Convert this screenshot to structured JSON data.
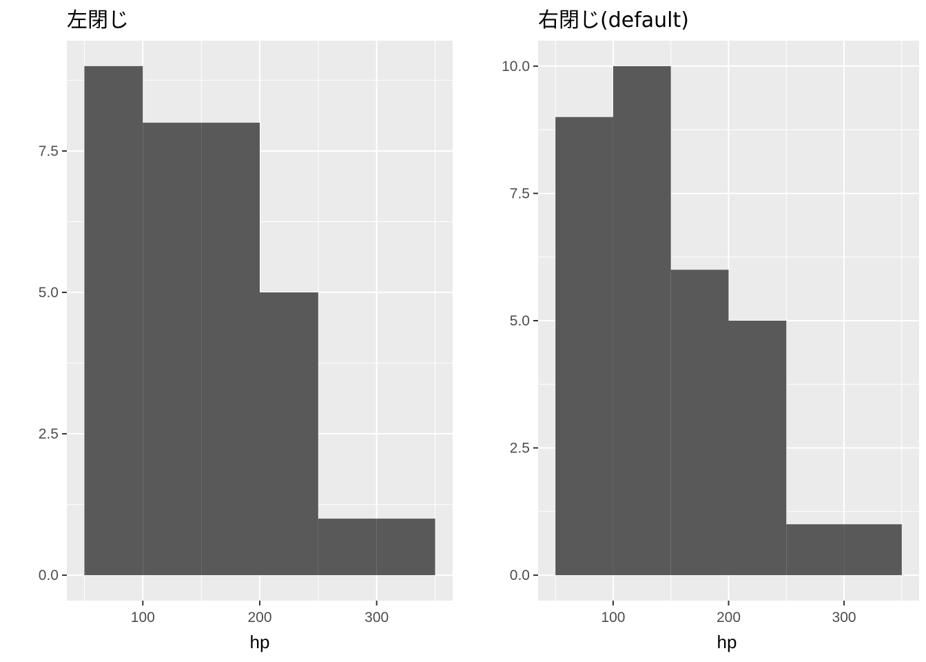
{
  "chart_data": [
    {
      "type": "bar",
      "subtype": "histogram",
      "title": "左閉じ",
      "xlabel": "hp",
      "ylabel": "",
      "bins": [
        {
          "x0": 50,
          "x1": 100,
          "count": 9
        },
        {
          "x0": 100,
          "x1": 150,
          "count": 8
        },
        {
          "x0": 150,
          "x1": 200,
          "count": 8
        },
        {
          "x0": 200,
          "x1": 250,
          "count": 5
        },
        {
          "x0": 250,
          "x1": 300,
          "count": 1
        },
        {
          "x0": 300,
          "x1": 350,
          "count": 1
        }
      ],
      "xlim": [
        35,
        365
      ],
      "ylim": [
        -0.45,
        9.45
      ],
      "x_ticks": [
        100,
        200,
        300
      ],
      "x_tick_labels": [
        "100",
        "200",
        "300"
      ],
      "y_ticks": [
        0,
        2.5,
        5,
        7.5
      ],
      "y_tick_labels": [
        "0.0",
        "2.5",
        "5.0",
        "7.5"
      ],
      "grid": true,
      "bar_color": "#595959",
      "panel_color": "#ebebeb"
    },
    {
      "type": "bar",
      "subtype": "histogram",
      "title": "右閉じ(default)",
      "xlabel": "hp",
      "ylabel": "",
      "bins": [
        {
          "x0": 50,
          "x1": 100,
          "count": 9
        },
        {
          "x0": 100,
          "x1": 150,
          "count": 10
        },
        {
          "x0": 150,
          "x1": 200,
          "count": 6
        },
        {
          "x0": 200,
          "x1": 250,
          "count": 5
        },
        {
          "x0": 250,
          "x1": 300,
          "count": 1
        },
        {
          "x0": 300,
          "x1": 350,
          "count": 1
        }
      ],
      "xlim": [
        35,
        365
      ],
      "ylim": [
        -0.5,
        10.5
      ],
      "x_ticks": [
        100,
        200,
        300
      ],
      "x_tick_labels": [
        "100",
        "200",
        "300"
      ],
      "y_ticks": [
        0,
        2.5,
        5,
        7.5,
        10
      ],
      "y_tick_labels": [
        "0.0",
        "2.5",
        "5.0",
        "7.5",
        "10.0"
      ],
      "grid": true,
      "bar_color": "#595959",
      "panel_color": "#ebebeb"
    }
  ]
}
